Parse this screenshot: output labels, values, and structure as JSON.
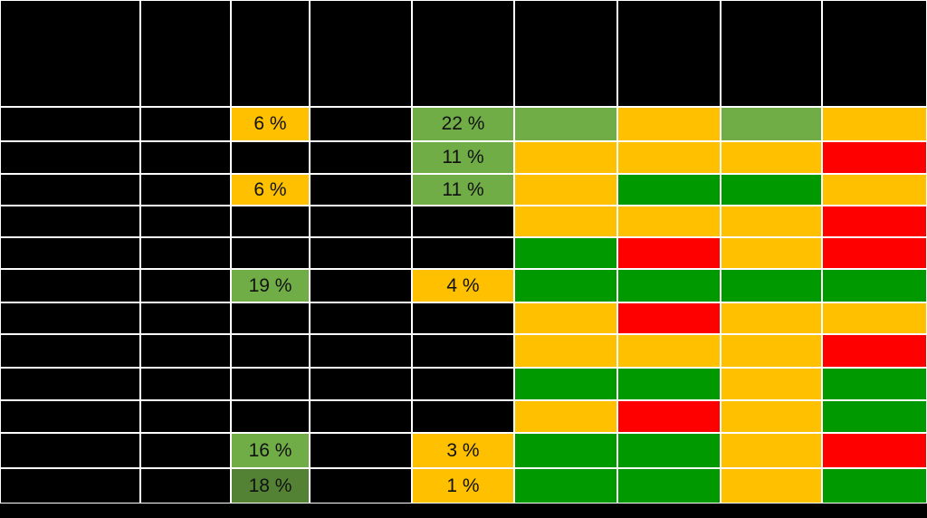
{
  "colors": {
    "black": "#000000",
    "light_green": "#70ad47",
    "dark_green": "#009900",
    "olive_green": "#548235",
    "amber": "#ffc000",
    "red": "#ff0000",
    "grid_line": "#ffffff"
  },
  "table": {
    "header_row": [
      "k",
      "k",
      "k",
      "k",
      "k",
      "k",
      "k",
      "k",
      "k"
    ],
    "rows": [
      {
        "cells": [
          {
            "c": "k"
          },
          {
            "c": "k"
          },
          {
            "c": "a",
            "text": "6 %"
          },
          {
            "c": "k"
          },
          {
            "c": "g",
            "text": "22 %"
          },
          {
            "c": "g"
          },
          {
            "c": "a"
          },
          {
            "c": "g"
          },
          {
            "c": "a"
          }
        ]
      },
      {
        "cells": [
          {
            "c": "k"
          },
          {
            "c": "k"
          },
          {
            "c": "k"
          },
          {
            "c": "k"
          },
          {
            "c": "g",
            "text": "11 %"
          },
          {
            "c": "a"
          },
          {
            "c": "a"
          },
          {
            "c": "a"
          },
          {
            "c": "r"
          }
        ]
      },
      {
        "cells": [
          {
            "c": "k"
          },
          {
            "c": "k"
          },
          {
            "c": "a",
            "text": "6 %"
          },
          {
            "c": "k"
          },
          {
            "c": "g",
            "text": "11 %"
          },
          {
            "c": "a"
          },
          {
            "c": "G"
          },
          {
            "c": "G"
          },
          {
            "c": "a"
          }
        ]
      },
      {
        "cells": [
          {
            "c": "k"
          },
          {
            "c": "k"
          },
          {
            "c": "k"
          },
          {
            "c": "k"
          },
          {
            "c": "k"
          },
          {
            "c": "a"
          },
          {
            "c": "a"
          },
          {
            "c": "a"
          },
          {
            "c": "r"
          }
        ]
      },
      {
        "cells": [
          {
            "c": "k"
          },
          {
            "c": "k"
          },
          {
            "c": "k"
          },
          {
            "c": "k"
          },
          {
            "c": "k"
          },
          {
            "c": "G"
          },
          {
            "c": "r"
          },
          {
            "c": "a"
          },
          {
            "c": "r"
          }
        ]
      },
      {
        "cells": [
          {
            "c": "k"
          },
          {
            "c": "k"
          },
          {
            "c": "g",
            "text": "19 %"
          },
          {
            "c": "k"
          },
          {
            "c": "a",
            "text": "4 %"
          },
          {
            "c": "G"
          },
          {
            "c": "G"
          },
          {
            "c": "G"
          },
          {
            "c": "G"
          }
        ]
      },
      {
        "cells": [
          {
            "c": "k"
          },
          {
            "c": "k"
          },
          {
            "c": "k"
          },
          {
            "c": "k"
          },
          {
            "c": "k"
          },
          {
            "c": "a"
          },
          {
            "c": "r"
          },
          {
            "c": "a"
          },
          {
            "c": "a"
          }
        ]
      },
      {
        "cells": [
          {
            "c": "k"
          },
          {
            "c": "k"
          },
          {
            "c": "k"
          },
          {
            "c": "k"
          },
          {
            "c": "k"
          },
          {
            "c": "a"
          },
          {
            "c": "a"
          },
          {
            "c": "a"
          },
          {
            "c": "r"
          }
        ]
      },
      {
        "cells": [
          {
            "c": "k"
          },
          {
            "c": "k"
          },
          {
            "c": "k"
          },
          {
            "c": "k"
          },
          {
            "c": "k"
          },
          {
            "c": "G"
          },
          {
            "c": "G"
          },
          {
            "c": "a"
          },
          {
            "c": "G"
          }
        ]
      },
      {
        "cells": [
          {
            "c": "k"
          },
          {
            "c": "k"
          },
          {
            "c": "k"
          },
          {
            "c": "k"
          },
          {
            "c": "k"
          },
          {
            "c": "a"
          },
          {
            "c": "r"
          },
          {
            "c": "a"
          },
          {
            "c": "G"
          }
        ]
      },
      {
        "cells": [
          {
            "c": "k"
          },
          {
            "c": "k"
          },
          {
            "c": "g",
            "text": "16 %"
          },
          {
            "c": "k"
          },
          {
            "c": "a",
            "text": "3 %"
          },
          {
            "c": "G"
          },
          {
            "c": "G"
          },
          {
            "c": "a"
          },
          {
            "c": "r"
          }
        ]
      },
      {
        "cells": [
          {
            "c": "k"
          },
          {
            "c": "k"
          },
          {
            "c": "o",
            "text": "18 %"
          },
          {
            "c": "k"
          },
          {
            "c": "a",
            "text": "1 %"
          },
          {
            "c": "G"
          },
          {
            "c": "G"
          },
          {
            "c": "a"
          },
          {
            "c": "G"
          }
        ]
      }
    ]
  }
}
